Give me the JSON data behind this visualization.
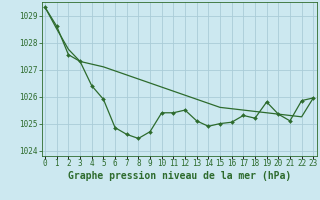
{
  "title": "Graphe pression niveau de la mer (hPa)",
  "background_color": "#cce8f0",
  "grid_color": "#aaccd8",
  "line_color": "#2d6b2d",
  "x_labels": [
    "0",
    "1",
    "2",
    "3",
    "4",
    "5",
    "6",
    "7",
    "8",
    "9",
    "10",
    "11",
    "12",
    "13",
    "14",
    "15",
    "16",
    "17",
    "18",
    "19",
    "20",
    "21",
    "22",
    "23"
  ],
  "hours": [
    0,
    1,
    2,
    3,
    4,
    5,
    6,
    7,
    8,
    9,
    10,
    11,
    12,
    13,
    14,
    15,
    16,
    17,
    18,
    19,
    20,
    21,
    22,
    23
  ],
  "data_line": [
    1029.3,
    1028.6,
    1027.55,
    1027.3,
    1026.4,
    1025.9,
    1024.85,
    1024.6,
    1024.45,
    1024.7,
    1025.4,
    1025.4,
    1025.5,
    1025.1,
    1024.9,
    1025.0,
    1025.05,
    1025.3,
    1025.2,
    1025.8,
    1025.35,
    1025.1,
    1025.85,
    1025.95
  ],
  "trend_line": [
    1029.3,
    1028.5,
    1027.75,
    1027.3,
    1027.2,
    1027.1,
    1026.95,
    1026.8,
    1026.65,
    1026.5,
    1026.35,
    1026.2,
    1026.05,
    1025.9,
    1025.75,
    1025.6,
    1025.55,
    1025.5,
    1025.45,
    1025.4,
    1025.35,
    1025.3,
    1025.25,
    1025.95
  ],
  "ylim": [
    1023.8,
    1029.5
  ],
  "yticks": [
    1024,
    1025,
    1026,
    1027,
    1028,
    1029
  ],
  "title_fontsize": 7,
  "tick_fontsize": 5.5
}
